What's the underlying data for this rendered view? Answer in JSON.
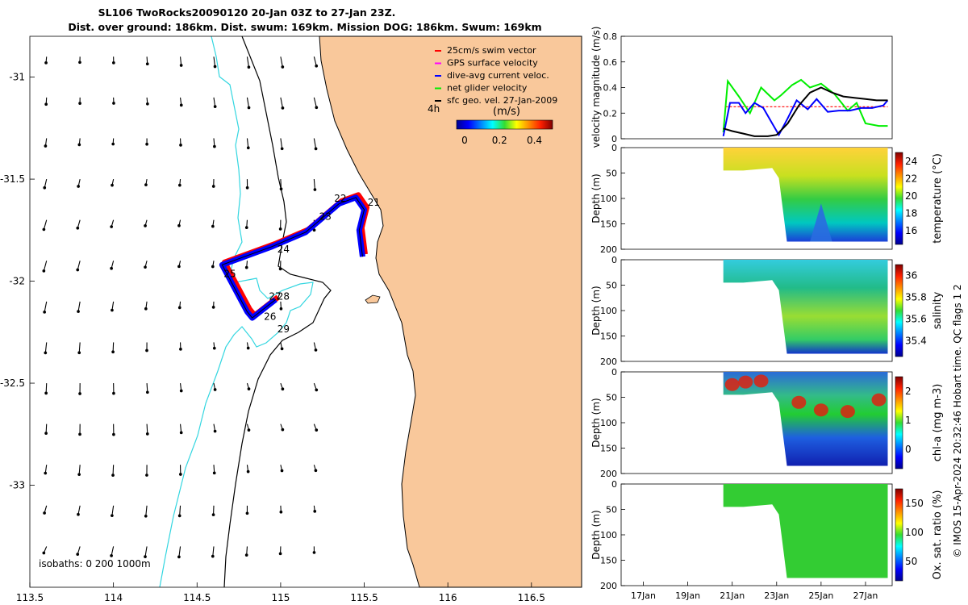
{
  "title_line1": "SL106 TwoRocks20090120 20-Jan 03Z to 27-Jan 23Z.",
  "title_line2": "Dist. over ground: 186km. Dist. swum: 169km. Mission DOG: 186km. Swum: 169km",
  "side_caption": "© IMOS 15-Apr-2024 20:32:46 Hobart time. QC flags 1  2",
  "colors": {
    "land": "#f9c89b",
    "isobath_shallow": "#000000",
    "isobath_deep": "#33d6e0",
    "swim_vector": "#ff0000",
    "gps_surface": "#ff00ff",
    "dive_avg": "#0000ff",
    "net_glider": "#00ee00",
    "sfc_geo": "#000000"
  },
  "map": {
    "xticks": [
      "113.5",
      "114",
      "114.5",
      "115",
      "115.5",
      "116",
      "116.5"
    ],
    "yticks": [
      "-31",
      "-31.5",
      "-32",
      "-32.5",
      "-33"
    ],
    "legend": [
      {
        "label": "25cm/s swim vector",
        "color": "#ff0000"
      },
      {
        "label": "GPS surface velocity",
        "color": "#ff00ff"
      },
      {
        "label": "dive-avg current veloc.",
        "color": "#0000ff"
      },
      {
        "label": "net glider velocity",
        "color": "#00ee00"
      },
      {
        "label": "sfc geo. vel. 27-Jan-2009",
        "color": "#000000"
      }
    ],
    "legend_scale_label": "4h",
    "colorbar_title": "(m/s)",
    "colorbar_ticks": [
      "0",
      "0.2",
      "0.4"
    ],
    "isobaths_label": "isobaths: 0   200  1000m",
    "day_labels": [
      "21",
      "22",
      "23",
      "24",
      "25",
      "26",
      "27",
      "28",
      "29"
    ],
    "track": [
      [
        115.49,
        -31.88
      ],
      [
        115.47,
        -31.75
      ],
      [
        115.5,
        -31.65
      ],
      [
        115.45,
        -31.59
      ],
      [
        115.35,
        -31.62
      ],
      [
        115.15,
        -31.76
      ],
      [
        114.95,
        -31.83
      ],
      [
        114.65,
        -31.92
      ],
      [
        114.8,
        -32.15
      ],
      [
        114.83,
        -32.18
      ],
      [
        114.97,
        -32.09
      ]
    ]
  },
  "chart_data": [
    {
      "type": "line",
      "ylabel": "velocity magnitude (m/s)",
      "ylim": [
        0,
        0.8
      ],
      "yticks": [
        "0",
        "0.2",
        "0.4",
        "0.6",
        "0.8"
      ],
      "xlim": [
        "16-Jan",
        "28-Jan"
      ],
      "series": [
        {
          "color": "#ff0000",
          "x": [
            "20.7",
            "22",
            "24",
            "26",
            "28"
          ],
          "values": [
            0.25,
            0.25,
            0.25,
            0.25,
            0.25
          ]
        },
        {
          "color": "#00ee00",
          "x": [
            "20.6",
            "20.8",
            "21.3",
            "21.8",
            "22.3",
            "22.9",
            "23.2",
            "23.7",
            "24.1",
            "24.5",
            "25.0",
            "25.6",
            "26.2",
            "26.6",
            "27.0",
            "27.6",
            "28"
          ],
          "values": [
            0.05,
            0.45,
            0.33,
            0.2,
            0.4,
            0.3,
            0.34,
            0.42,
            0.46,
            0.4,
            0.43,
            0.35,
            0.22,
            0.28,
            0.12,
            0.1,
            0.1
          ]
        },
        {
          "color": "#0000ff",
          "x": [
            "20.6",
            "20.9",
            "21.3",
            "21.6",
            "22.0",
            "22.4",
            "22.8",
            "23.1",
            "23.5",
            "23.9",
            "24.4",
            "24.8",
            "25.3",
            "25.8",
            "26.3",
            "26.8",
            "27.3",
            "27.8",
            "28"
          ],
          "values": [
            0.02,
            0.28,
            0.28,
            0.2,
            0.28,
            0.24,
            0.12,
            0.03,
            0.16,
            0.3,
            0.23,
            0.31,
            0.21,
            0.22,
            0.22,
            0.24,
            0.24,
            0.26,
            0.3
          ]
        },
        {
          "color": "#000000",
          "x": [
            "20.6",
            "21.0",
            "21.5",
            "22.0",
            "22.6",
            "23.0",
            "23.5",
            "24.0",
            "24.5",
            "25.0",
            "25.5",
            "26.0",
            "26.5",
            "27.0",
            "27.5",
            "28"
          ],
          "values": [
            0.08,
            0.06,
            0.04,
            0.02,
            0.02,
            0.03,
            0.12,
            0.26,
            0.36,
            0.4,
            0.36,
            0.33,
            0.32,
            0.31,
            0.3,
            0.3
          ]
        }
      ]
    },
    {
      "type": "heatmap",
      "ylabel": "Depth (m)",
      "ylim": [
        0,
        200
      ],
      "yticks": [
        "0",
        "50",
        "100",
        "150",
        "200"
      ],
      "colorbar_label": "temperature (°C)",
      "colorbar_ticks": [
        "16",
        "18",
        "20",
        "22",
        "24"
      ]
    },
    {
      "type": "heatmap",
      "ylabel": "Depth (m)",
      "ylim": [
        0,
        200
      ],
      "yticks": [
        "0",
        "50",
        "100",
        "150",
        "200"
      ],
      "colorbar_label": "salinity",
      "colorbar_ticks": [
        "35.4",
        "35.6",
        "35.8",
        "36"
      ]
    },
    {
      "type": "heatmap",
      "ylabel": "Depth (m)",
      "ylim": [
        0,
        200
      ],
      "yticks": [
        "0",
        "50",
        "100",
        "150",
        "200"
      ],
      "colorbar_label": "chl-a (mg m-3)",
      "colorbar_ticks": [
        "0",
        "1",
        "2"
      ]
    },
    {
      "type": "heatmap",
      "ylabel": "Depth (m)",
      "ylim": [
        0,
        200
      ],
      "yticks": [
        "0",
        "50",
        "100",
        "150",
        "200"
      ],
      "colorbar_label": "Ox. sat. ratio (%)",
      "colorbar_ticks": [
        "50",
        "100",
        "150"
      ]
    }
  ],
  "time_axis_ticks": [
    "17Jan",
    "19Jan",
    "21Jan",
    "23Jan",
    "25Jan",
    "27Jan"
  ]
}
